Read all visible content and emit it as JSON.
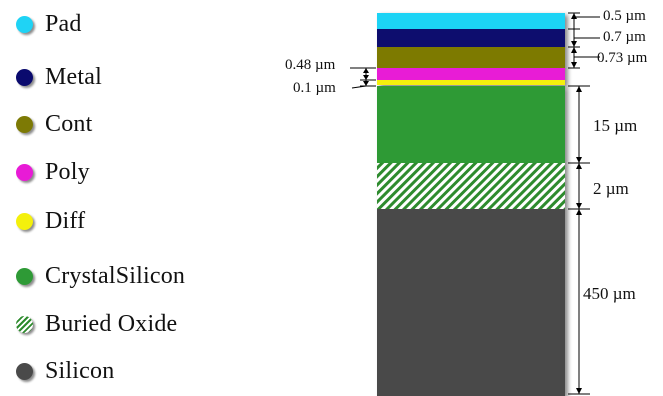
{
  "legend": [
    {
      "label": "Pad",
      "color": "#1fd3f5",
      "icon": "cyan-circle-icon"
    },
    {
      "label": "Metal",
      "color": "#0a0a6e",
      "icon": "navy-circle-icon"
    },
    {
      "label": "Cont",
      "color": "#7d7a05",
      "icon": "olive-circle-icon"
    },
    {
      "label": "Poly",
      "color": "#e81bd6",
      "icon": "magenta-circle-icon"
    },
    {
      "label": "Diff",
      "color": "#f4f00c",
      "icon": "yellow-circle-icon"
    },
    {
      "label": "CrystalSilicon",
      "color": "#2e9a36",
      "icon": "green-circle-icon"
    },
    {
      "label": "Buried Oxide",
      "color": "#2e8b2e",
      "icon": "hatched-circle-icon"
    },
    {
      "label": "Silicon",
      "color": "#4a4a4a",
      "icon": "gray-circle-icon"
    }
  ],
  "layers": [
    {
      "name": "Pad",
      "thickness": "0.5 µm"
    },
    {
      "name": "Metal",
      "thickness": "0.7 µm"
    },
    {
      "name": "Cont",
      "thickness": "0.73 µm"
    },
    {
      "name": "Poly",
      "thickness": "0.48 µm"
    },
    {
      "name": "Diff",
      "thickness": "0.1 µm"
    },
    {
      "name": "CrystalSilicon",
      "thickness": "15 µm"
    },
    {
      "name": "Buried Oxide",
      "thickness": "2 µm"
    },
    {
      "name": "Silicon",
      "thickness": "450 µm"
    }
  ]
}
